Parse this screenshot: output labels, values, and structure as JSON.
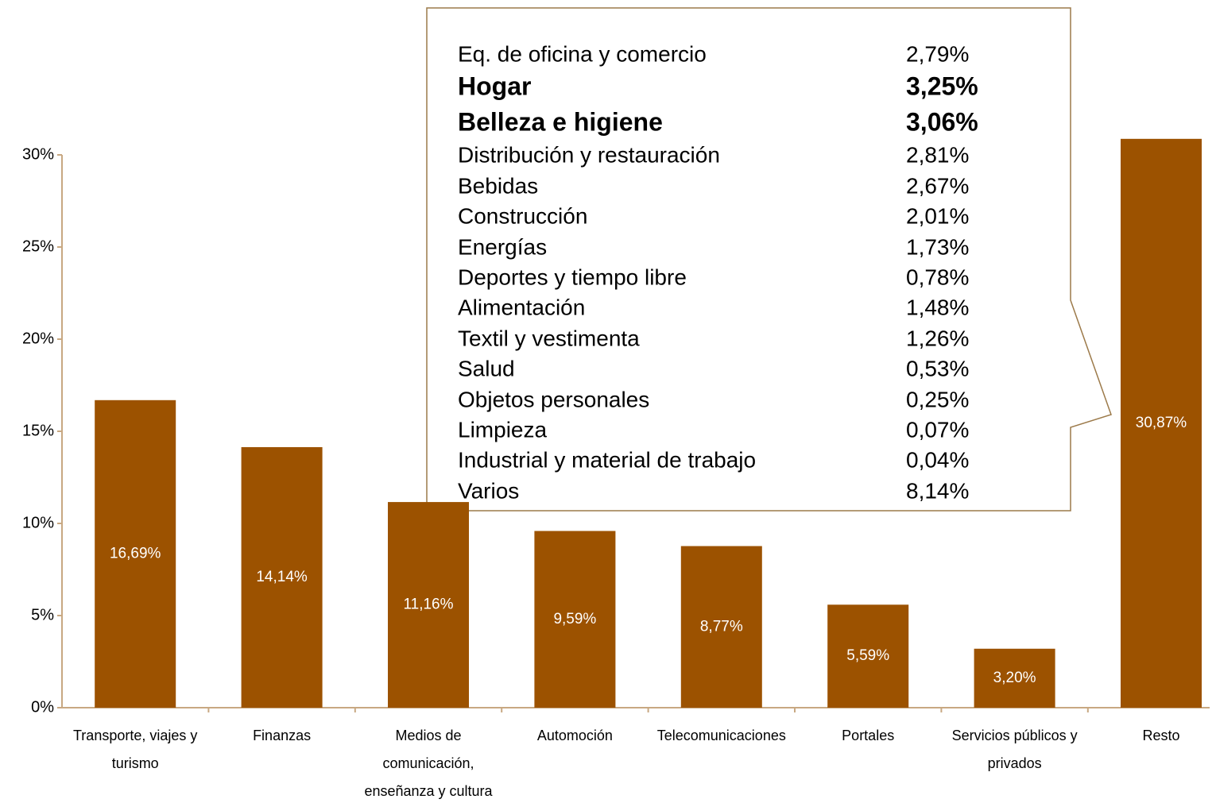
{
  "chart_data": {
    "type": "bar",
    "categories": [
      "Transporte, viajes y turismo",
      "Finanzas",
      "Medios de comunicación, enseñanza y cultura",
      "Automoción",
      "Telecomunicaciones",
      "Portales",
      "Servicios públicos y privados",
      "Resto"
    ],
    "values": [
      16.69,
      14.14,
      11.16,
      9.59,
      8.77,
      5.59,
      3.2,
      30.87
    ],
    "value_labels": [
      "16,69%",
      "14,14%",
      "11,16%",
      "9,59%",
      "8,77%",
      "5,59%",
      "3,20%",
      "30,87%"
    ],
    "color": "#9c5200",
    "ylim": [
      0,
      30
    ],
    "yticks": [
      {
        "value": 0,
        "label": "0%"
      },
      {
        "value": 5,
        "label": "5%"
      },
      {
        "value": 10,
        "label": "10%"
      },
      {
        "value": 15,
        "label": "15%"
      },
      {
        "value": 20,
        "label": "20%"
      },
      {
        "value": 25,
        "label": "25%"
      },
      {
        "value": 30,
        "label": "30%"
      }
    ],
    "grid": false,
    "callout": {
      "items": [
        {
          "label": "Eq. de oficina y comercio",
          "value": 2.79,
          "value_label": "2,79%",
          "bold": false
        },
        {
          "label": "Hogar",
          "value": 3.25,
          "value_label": "3,25%",
          "bold": true
        },
        {
          "label": "Belleza e higiene",
          "value": 3.06,
          "value_label": "3,06%",
          "bold": true
        },
        {
          "label": "Distribución y restauración",
          "value": 2.81,
          "value_label": "2,81%",
          "bold": false
        },
        {
          "label": "Bebidas",
          "value": 2.67,
          "value_label": "2,67%",
          "bold": false
        },
        {
          "label": "Construcción",
          "value": 2.01,
          "value_label": "2,01%",
          "bold": false
        },
        {
          "label": "Energías",
          "value": 1.73,
          "value_label": "1,73%",
          "bold": false
        },
        {
          "label": "Deportes y tiempo libre",
          "value": 0.78,
          "value_label": "0,78%",
          "bold": false
        },
        {
          "label": "Alimentación",
          "value": 1.48,
          "value_label": "1,48%",
          "bold": false
        },
        {
          "label": "Textil y vestimenta",
          "value": 1.26,
          "value_label": "1,26%",
          "bold": false
        },
        {
          "label": "Salud",
          "value": 0.53,
          "value_label": "0,53%",
          "bold": false
        },
        {
          "label": "Objetos personales",
          "value": 0.25,
          "value_label": "0,25%",
          "bold": false
        },
        {
          "label": "Limpieza",
          "value": 0.07,
          "value_label": "0,07%",
          "bold": false
        },
        {
          "label": "Industrial y material de trabajo",
          "value": 0.04,
          "value_label": "0,04%",
          "bold": false
        },
        {
          "label": "Varios",
          "value": 8.14,
          "value_label": "8,14%",
          "bold": false
        }
      ]
    }
  }
}
